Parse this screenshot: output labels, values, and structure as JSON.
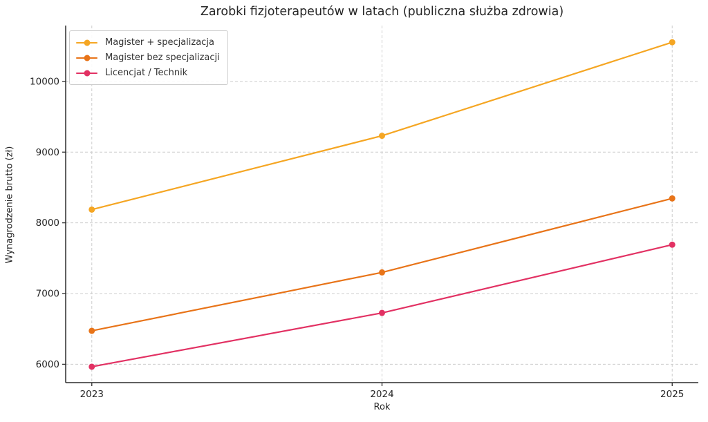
{
  "chart_data": {
    "type": "line",
    "title": "Zarobki fizjoterapeutów w latach (publiczna służba zdrowia)",
    "xlabel": "Rok",
    "ylabel": "Wynagrodzenie brutto (zł)",
    "categories": [
      2023,
      2024,
      2025
    ],
    "x_tick_labels": [
      "2023",
      "2024",
      "2025"
    ],
    "y_tick_values": [
      6000,
      7000,
      8000,
      9000,
      10000
    ],
    "y_tick_labels": [
      "6000",
      "7000",
      "8000",
      "9000",
      "10000"
    ],
    "xlim": [
      2022.91,
      2025.09
    ],
    "ylim": [
      5740,
      10790
    ],
    "grid": true,
    "grid_style": "dashed",
    "legend_position": "upper-left",
    "series": [
      {
        "name": "Magister + specjalizacja",
        "color": "#F5A623",
        "values": [
          8187,
          9231,
          10554
        ]
      },
      {
        "name": "Magister bez specjalizacji",
        "color": "#E87419",
        "values": [
          6473,
          7299,
          8345
        ]
      },
      {
        "name": "Licencjat / Technik",
        "color": "#E23163",
        "values": [
          5965,
          6726,
          7691
        ]
      }
    ]
  },
  "colors": {
    "background": "#ffffff",
    "grid": "#cccccc",
    "spine": "#2b2b2b",
    "tick_text": "#262626",
    "legend_border": "#cccccc",
    "legend_text": "#333333"
  }
}
